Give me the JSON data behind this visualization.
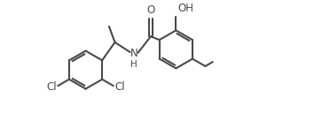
{
  "bg_color": "#ffffff",
  "line_color": "#4a4a4a",
  "line_width": 1.5,
  "font_size_label": 8.5,
  "fig_width": 3.63,
  "fig_height": 1.37,
  "dpi": 100,
  "xlim": [
    0,
    10
  ],
  "ylim": [
    0,
    3.8
  ]
}
